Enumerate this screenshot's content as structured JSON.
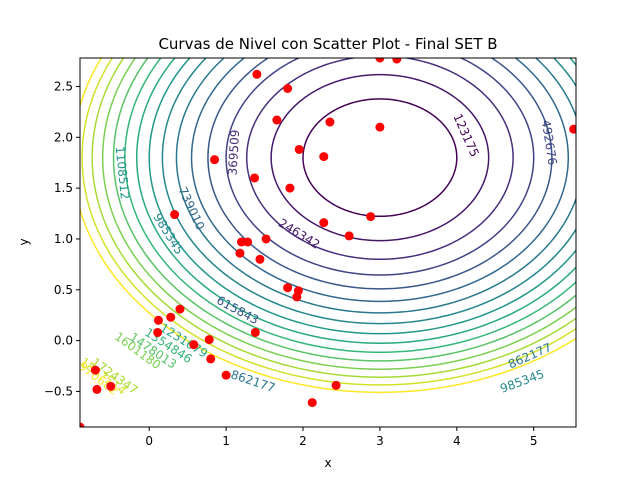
{
  "chart_data": {
    "type": "contour",
    "title": "Curvas de Nivel con Scatter Plot - Final SET B",
    "xlabel": "x",
    "ylabel": "y",
    "xlim": [
      -0.9,
      5.55
    ],
    "ylim": [
      -0.85,
      2.78
    ],
    "xticks": [
      0,
      1,
      2,
      3,
      4,
      5
    ],
    "yticks": [
      -0.5,
      0.0,
      0.5,
      1.0,
      1.5,
      2.0,
      2.5
    ],
    "grid": false,
    "legend": "none",
    "contour_function": {
      "cx": 3.0,
      "cy": 1.8,
      "a": 1.0,
      "b": 3.0,
      "c": 0.0
    },
    "contour_levels": [
      123175,
      246342,
      369509,
      492676,
      615843,
      739010,
      862177,
      985345,
      1108512,
      1231679,
      1354846,
      1478013,
      1601180,
      1724347,
      1847514,
      1970682
    ],
    "contour_labels": [
      {
        "text": "123175",
        "x": 4.12,
        "y": 2.02
      },
      {
        "text": "246342",
        "x": 1.95,
        "y": 1.05
      },
      {
        "text": "369509",
        "x": 1.1,
        "y": 1.85
      },
      {
        "text": "492676",
        "x": 5.2,
        "y": 1.95
      },
      {
        "text": "615843",
        "x": 1.15,
        "y": 0.3
      },
      {
        "text": "739010",
        "x": 0.55,
        "y": 1.3
      },
      {
        "text": "862177",
        "x": 1.35,
        "y": -0.4
      },
      {
        "text": "862177",
        "x": 4.95,
        "y": -0.15
      },
      {
        "text": "985345",
        "x": 0.25,
        "y": 1.05
      },
      {
        "text": "985345",
        "x": 4.85,
        "y": -0.4
      },
      {
        "text": "1108512",
        "x": -0.35,
        "y": 1.65
      },
      {
        "text": "1231679",
        "x": 0.45,
        "y": 0.0
      },
      {
        "text": "1354846",
        "x": 0.25,
        "y": -0.05
      },
      {
        "text": "1478013",
        "x": 0.05,
        "y": -0.1
      },
      {
        "text": "1601180",
        "x": -0.15,
        "y": -0.1
      },
      {
        "text": "1724347",
        "x": -0.45,
        "y": -0.35
      },
      {
        "text": "1847514",
        "x": -0.6,
        "y": -0.35
      },
      {
        "text": "1970682",
        "x": -0.7,
        "y": -0.35
      }
    ],
    "scatter_color": "#ff0000",
    "points": [
      {
        "x": 1.4,
        "y": 2.62
      },
      {
        "x": 1.8,
        "y": 2.48
      },
      {
        "x": 3.0,
        "y": 2.78
      },
      {
        "x": 3.22,
        "y": 2.77
      },
      {
        "x": 1.66,
        "y": 2.17
      },
      {
        "x": 2.35,
        "y": 2.15
      },
      {
        "x": 3.0,
        "y": 2.1
      },
      {
        "x": 5.52,
        "y": 2.08
      },
      {
        "x": 1.95,
        "y": 1.88
      },
      {
        "x": 0.85,
        "y": 1.78
      },
      {
        "x": 2.27,
        "y": 1.81
      },
      {
        "x": 1.37,
        "y": 1.6
      },
      {
        "x": 1.83,
        "y": 1.5
      },
      {
        "x": 0.33,
        "y": 1.24
      },
      {
        "x": 2.88,
        "y": 1.22
      },
      {
        "x": 2.27,
        "y": 1.16
      },
      {
        "x": 2.6,
        "y": 1.03
      },
      {
        "x": 1.2,
        "y": 0.97
      },
      {
        "x": 1.28,
        "y": 0.97
      },
      {
        "x": 1.52,
        "y": 1.0
      },
      {
        "x": 1.18,
        "y": 0.86
      },
      {
        "x": 1.44,
        "y": 0.8
      },
      {
        "x": 1.8,
        "y": 0.52
      },
      {
        "x": 1.94,
        "y": 0.49
      },
      {
        "x": 1.92,
        "y": 0.43
      },
      {
        "x": 0.4,
        "y": 0.31
      },
      {
        "x": 0.12,
        "y": 0.2
      },
      {
        "x": 0.28,
        "y": 0.23
      },
      {
        "x": 0.11,
        "y": 0.08
      },
      {
        "x": 1.38,
        "y": 0.08
      },
      {
        "x": 0.78,
        "y": 0.01
      },
      {
        "x": 0.58,
        "y": -0.04
      },
      {
        "x": 0.8,
        "y": -0.18
      },
      {
        "x": -0.7,
        "y": -0.29
      },
      {
        "x": 1.0,
        "y": -0.34
      },
      {
        "x": -0.5,
        "y": -0.45
      },
      {
        "x": -0.68,
        "y": -0.48
      },
      {
        "x": 2.43,
        "y": -0.44
      },
      {
        "x": 2.12,
        "y": -0.61
      },
      {
        "x": -0.9,
        "y": -0.85
      }
    ]
  }
}
